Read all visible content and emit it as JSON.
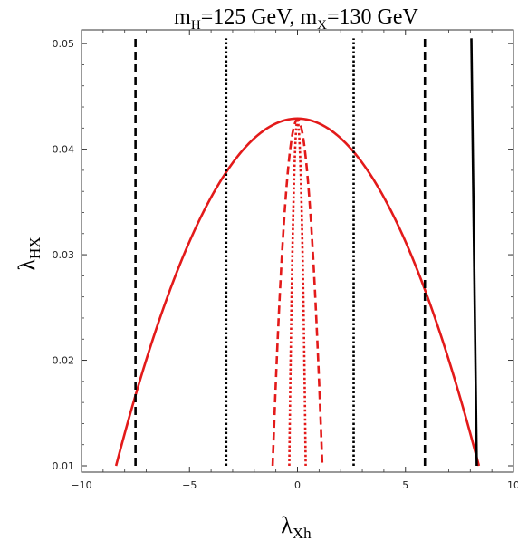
{
  "chart_data": {
    "type": "line",
    "title": {
      "m_sym": "m",
      "sub1": "H",
      "mid": "=125 GeV, ",
      "m_sym2": "m",
      "sub2": "X",
      "end": "=130 GeV"
    },
    "xlabel": {
      "main": "λ",
      "sub": "Xh"
    },
    "ylabel": {
      "main": "λ",
      "sub": "HX"
    },
    "xlim": [
      -10,
      10
    ],
    "ylim": [
      0.0094,
      0.0513
    ],
    "x_ticks": [
      {
        "value": -10,
        "label": "−10"
      },
      {
        "value": -5,
        "label": "−5"
      },
      {
        "value": 0,
        "label": "0"
      },
      {
        "value": 5,
        "label": "5"
      },
      {
        "value": 10,
        "label": "10"
      }
    ],
    "y_ticks": [
      {
        "value": 0.01,
        "label": "0.01"
      },
      {
        "value": 0.02,
        "label": "0.02"
      },
      {
        "value": 0.03,
        "label": "0.03"
      },
      {
        "value": 0.04,
        "label": "0.04"
      },
      {
        "value": 0.05,
        "label": "0.05"
      }
    ],
    "grid": false,
    "series": [
      {
        "style": "solid",
        "color": "#e31a1a",
        "shape": "parabola",
        "apex": [
          0,
          0.0429
        ],
        "half_width_at_ymin": 8.4,
        "ymin": 0.01
      },
      {
        "style": "dashed",
        "color": "#e31a1a",
        "shape": "parabola",
        "apex": [
          0,
          0.0428
        ],
        "half_width_at_ymin": 1.15,
        "ymin": 0.01
      },
      {
        "style": "dotted",
        "color": "#e31a1a",
        "shape": "parabola",
        "apex": [
          0,
          0.0427
        ],
        "half_width_at_ymin": 0.38,
        "ymin": 0.01
      },
      {
        "style": "dashed",
        "color": "#000000",
        "shape": "vline",
        "x": -7.5,
        "y_range": [
          0.01,
          0.0505
        ]
      },
      {
        "style": "dashed",
        "color": "#000000",
        "shape": "vline",
        "x": 5.9,
        "y_range": [
          0.01,
          0.0505
        ]
      },
      {
        "style": "dotted",
        "color": "#000000",
        "shape": "vline",
        "x": -3.3,
        "y_range": [
          0.01,
          0.0505
        ]
      },
      {
        "style": "dotted",
        "color": "#000000",
        "shape": "vline",
        "x": 2.6,
        "y_range": [
          0.01,
          0.0505
        ]
      },
      {
        "style": "solid",
        "color": "#000000",
        "shape": "segment",
        "points": [
          [
            8.05,
            0.0505
          ],
          [
            8.3,
            0.01
          ]
        ]
      }
    ]
  }
}
